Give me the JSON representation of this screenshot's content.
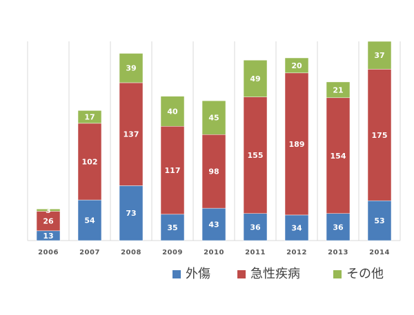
{
  "chart_data": {
    "type": "bar",
    "stacked": true,
    "categories": [
      "2006",
      "2007",
      "2008",
      "2009",
      "2010",
      "2011",
      "2012",
      "2013",
      "2014"
    ],
    "series": [
      {
        "name": "外傷",
        "color": "#4a7ebb",
        "values": [
          13,
          54,
          73,
          35,
          43,
          36,
          34,
          36,
          53
        ]
      },
      {
        "name": "急性疾病",
        "color": "#be4b48",
        "values": [
          26,
          102,
          137,
          117,
          98,
          155,
          189,
          154,
          175
        ]
      },
      {
        "name": "その他",
        "color": "#98b954",
        "values": [
          3,
          17,
          39,
          40,
          45,
          49,
          20,
          21,
          37
        ]
      }
    ],
    "title": "",
    "xlabel": "",
    "ylabel": "",
    "ylim": [
      0,
      265
    ],
    "grid": "vertical",
    "legend_position": "bottom-right"
  }
}
